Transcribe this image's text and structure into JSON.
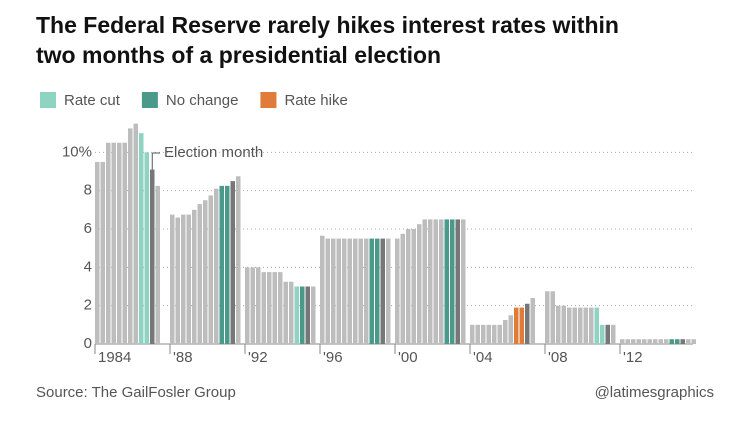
{
  "chart_data": {
    "type": "bar",
    "title_lines": [
      "The Federal Reserve rarely hikes interest rates within",
      "two months of a presidential election"
    ],
    "series": [
      {
        "name": "Rate cut",
        "color": "#8fd3c3"
      },
      {
        "name": "No change",
        "color": "#4a9a8c"
      },
      {
        "name": "Rate hike",
        "color": "#e07b39"
      }
    ],
    "base_color": "#bdbdbd",
    "election_color": "#777777",
    "annotation": "Election month",
    "groups": [
      {
        "label": "1984",
        "values": [
          9.5,
          9.5,
          10.5,
          10.5,
          10.5,
          10.5,
          11.25,
          11.5,
          11,
          10,
          9.1,
          8.25
        ],
        "kinds": [
          null,
          null,
          null,
          null,
          null,
          null,
          null,
          null,
          0,
          0,
          null,
          null
        ],
        "election": 10
      },
      {
        "label": "'88",
        "values": [
          6.75,
          6.6,
          6.75,
          6.75,
          7,
          7.3,
          7.5,
          7.75,
          8.1,
          8.25,
          8.25,
          8.5,
          8.75
        ],
        "kinds": [
          null,
          null,
          null,
          null,
          null,
          null,
          null,
          null,
          null,
          1,
          1,
          null,
          null
        ],
        "election": 11
      },
      {
        "label": "'92",
        "values": [
          4,
          4,
          4,
          3.75,
          3.75,
          3.75,
          3.75,
          3.25,
          3.25,
          3,
          3,
          3,
          3
        ],
        "kinds": [
          null,
          null,
          null,
          null,
          null,
          null,
          null,
          null,
          null,
          0,
          1,
          null,
          null
        ],
        "election": 11
      },
      {
        "label": "'96",
        "values": [
          5.65,
          5.5,
          5.5,
          5.5,
          5.5,
          5.5,
          5.5,
          5.5,
          5.5,
          5.5,
          5.5,
          5.5,
          5.5
        ],
        "kinds": [
          null,
          null,
          null,
          null,
          null,
          null,
          null,
          null,
          null,
          1,
          1,
          null,
          null
        ],
        "election": 11
      },
      {
        "label": "'00",
        "values": [
          5.5,
          5.75,
          6,
          6,
          6.25,
          6.5,
          6.5,
          6.5,
          6.5,
          6.5,
          6.5,
          6.5,
          6.5
        ],
        "kinds": [
          null,
          null,
          null,
          null,
          null,
          null,
          null,
          null,
          null,
          1,
          1,
          null,
          null
        ],
        "election": 11
      },
      {
        "label": "'04",
        "values": [
          1,
          1,
          1,
          1,
          1,
          1,
          1.25,
          1.5,
          1.9,
          1.9,
          2.1,
          2.4
        ],
        "kinds": [
          null,
          null,
          null,
          null,
          null,
          null,
          null,
          null,
          2,
          2,
          null,
          null
        ],
        "election": 10
      },
      {
        "label": "'08",
        "values": [
          2.75,
          2.75,
          2,
          2,
          1.9,
          1.9,
          1.9,
          1.9,
          1.9,
          1.9,
          1,
          1,
          1
        ],
        "kinds": [
          null,
          null,
          null,
          null,
          null,
          null,
          null,
          null,
          null,
          0,
          0,
          null,
          null
        ],
        "election": 11
      },
      {
        "label": "'12",
        "values": [
          0.25,
          0.25,
          0.25,
          0.25,
          0.25,
          0.25,
          0.25,
          0.25,
          0.25,
          0.25,
          0.25,
          0.25,
          0.25,
          0.25
        ],
        "kinds": [
          null,
          null,
          null,
          null,
          null,
          null,
          null,
          null,
          null,
          1,
          1,
          null,
          null,
          null
        ],
        "election": 11
      }
    ],
    "ylim": [
      0,
      12
    ],
    "yticks": [
      0,
      2,
      4,
      6,
      8,
      {
        "value": 10,
        "label": "10%"
      }
    ],
    "grid": true,
    "source": "Source: The GailFosler Group",
    "credit": "@latimesgraphics"
  }
}
